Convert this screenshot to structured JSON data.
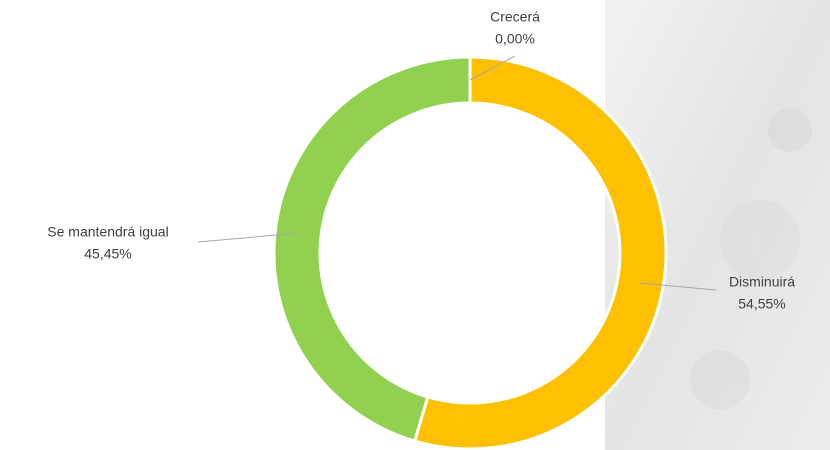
{
  "chart_data": {
    "type": "donut",
    "categories": [
      "Crecerá",
      "Disminuirá",
      "Se mantendrá igual"
    ],
    "values": [
      0,
      54.55,
      45.45
    ],
    "value_labels": [
      "0,00%",
      "54,55%",
      "45,45%"
    ],
    "colors": [
      "#5b9bd5",
      "#ffc000",
      "#92d050"
    ]
  }
}
